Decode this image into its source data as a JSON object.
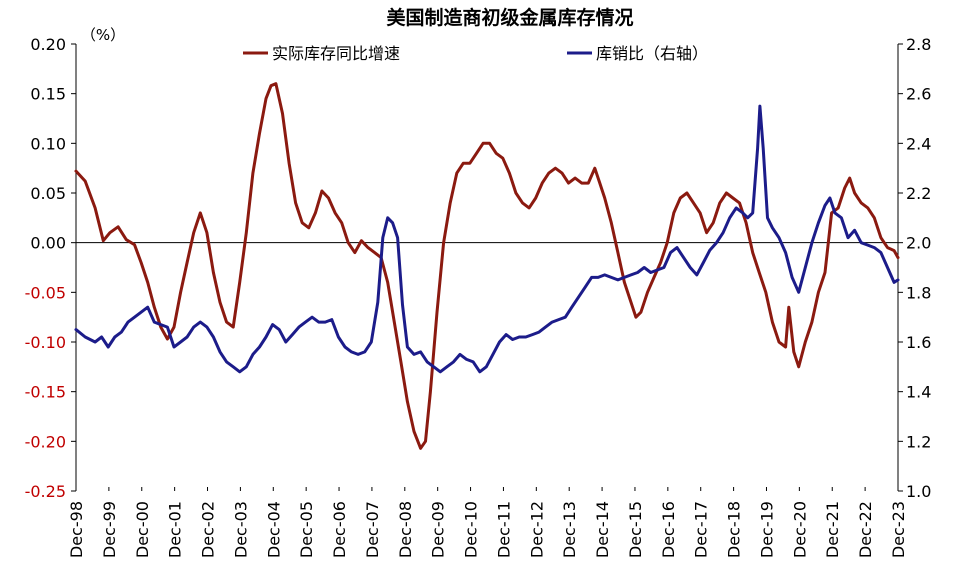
{
  "chart_data": {
    "type": "line",
    "title": "美国制造商初级金属库存情况",
    "unit_label": "（%）",
    "x_tick_labels": [
      "Dec-98",
      "Dec-99",
      "Dec-00",
      "Dec-01",
      "Dec-02",
      "Dec-03",
      "Dec-04",
      "Dec-05",
      "Dec-06",
      "Dec-07",
      "Dec-08",
      "Dec-09",
      "Dec-10",
      "Dec-11",
      "Dec-12",
      "Dec-13",
      "Dec-14",
      "Dec-15",
      "Dec-16",
      "Dec-17",
      "Dec-18",
      "Dec-19",
      "Dec-20",
      "Dec-21",
      "Dec-22",
      "Dec-23"
    ],
    "x_range": [
      1998.92,
      2023.92
    ],
    "y_left": {
      "min": -0.25,
      "max": 0.2,
      "step": 0.05,
      "ticks": [
        "0.20",
        "0.15",
        "0.10",
        "0.05",
        "0.00",
        "-0.05",
        "-0.10",
        "-0.15",
        "-0.20",
        "-0.25"
      ],
      "negative_color": "#c00000"
    },
    "y_right": {
      "min": 1.0,
      "max": 2.8,
      "step": 0.2,
      "ticks": [
        "2.8",
        "2.6",
        "2.4",
        "2.2",
        "2.0",
        "1.8",
        "1.6",
        "1.4",
        "1.2",
        "1.0"
      ]
    },
    "legend_position": "top",
    "series": [
      {
        "name": "实际库存同比增速",
        "axis": "left",
        "color": "#8b1a10",
        "points": [
          [
            1998.92,
            0.072
          ],
          [
            1999.2,
            0.062
          ],
          [
            1999.5,
            0.035
          ],
          [
            1999.75,
            0.002
          ],
          [
            1999.95,
            0.01
          ],
          [
            2000.2,
            0.016
          ],
          [
            2000.45,
            0.003
          ],
          [
            2000.7,
            -0.002
          ],
          [
            2000.9,
            -0.02
          ],
          [
            2001.1,
            -0.04
          ],
          [
            2001.3,
            -0.065
          ],
          [
            2001.5,
            -0.085
          ],
          [
            2001.7,
            -0.097
          ],
          [
            2001.9,
            -0.085
          ],
          [
            2002.1,
            -0.05
          ],
          [
            2002.3,
            -0.02
          ],
          [
            2002.5,
            0.01
          ],
          [
            2002.7,
            0.03
          ],
          [
            2002.9,
            0.01
          ],
          [
            2003.1,
            -0.03
          ],
          [
            2003.3,
            -0.06
          ],
          [
            2003.5,
            -0.08
          ],
          [
            2003.7,
            -0.085
          ],
          [
            2003.9,
            -0.04
          ],
          [
            2004.1,
            0.01
          ],
          [
            2004.3,
            0.07
          ],
          [
            2004.5,
            0.11
          ],
          [
            2004.7,
            0.145
          ],
          [
            2004.85,
            0.158
          ],
          [
            2005.0,
            0.16
          ],
          [
            2005.2,
            0.13
          ],
          [
            2005.4,
            0.08
          ],
          [
            2005.6,
            0.04
          ],
          [
            2005.8,
            0.02
          ],
          [
            2006.0,
            0.015
          ],
          [
            2006.2,
            0.03
          ],
          [
            2006.4,
            0.052
          ],
          [
            2006.6,
            0.045
          ],
          [
            2006.8,
            0.03
          ],
          [
            2007.0,
            0.02
          ],
          [
            2007.2,
            0.0
          ],
          [
            2007.4,
            -0.01
          ],
          [
            2007.6,
            0.002
          ],
          [
            2007.8,
            -0.005
          ],
          [
            2008.0,
            -0.01
          ],
          [
            2008.2,
            -0.015
          ],
          [
            2008.4,
            -0.04
          ],
          [
            2008.6,
            -0.08
          ],
          [
            2008.8,
            -0.12
          ],
          [
            2009.0,
            -0.16
          ],
          [
            2009.2,
            -0.19
          ],
          [
            2009.4,
            -0.207
          ],
          [
            2009.55,
            -0.2
          ],
          [
            2009.7,
            -0.15
          ],
          [
            2009.9,
            -0.07
          ],
          [
            2010.1,
            0.0
          ],
          [
            2010.3,
            0.04
          ],
          [
            2010.5,
            0.07
          ],
          [
            2010.7,
            0.08
          ],
          [
            2010.9,
            0.08
          ],
          [
            2011.1,
            0.09
          ],
          [
            2011.3,
            0.1
          ],
          [
            2011.5,
            0.1
          ],
          [
            2011.7,
            0.09
          ],
          [
            2011.9,
            0.085
          ],
          [
            2012.1,
            0.07
          ],
          [
            2012.3,
            0.05
          ],
          [
            2012.5,
            0.04
          ],
          [
            2012.7,
            0.035
          ],
          [
            2012.9,
            0.045
          ],
          [
            2013.1,
            0.06
          ],
          [
            2013.3,
            0.07
          ],
          [
            2013.5,
            0.075
          ],
          [
            2013.7,
            0.07
          ],
          [
            2013.9,
            0.06
          ],
          [
            2014.1,
            0.065
          ],
          [
            2014.3,
            0.06
          ],
          [
            2014.5,
            0.06
          ],
          [
            2014.7,
            0.075
          ],
          [
            2014.85,
            0.06
          ],
          [
            2015.0,
            0.045
          ],
          [
            2015.2,
            0.02
          ],
          [
            2015.4,
            -0.01
          ],
          [
            2015.6,
            -0.04
          ],
          [
            2015.8,
            -0.06
          ],
          [
            2015.95,
            -0.075
          ],
          [
            2016.1,
            -0.07
          ],
          [
            2016.3,
            -0.05
          ],
          [
            2016.5,
            -0.035
          ],
          [
            2016.7,
            -0.02
          ],
          [
            2016.9,
            0.0
          ],
          [
            2017.1,
            0.03
          ],
          [
            2017.3,
            0.045
          ],
          [
            2017.5,
            0.05
          ],
          [
            2017.7,
            0.04
          ],
          [
            2017.9,
            0.03
          ],
          [
            2018.1,
            0.01
          ],
          [
            2018.3,
            0.02
          ],
          [
            2018.5,
            0.04
          ],
          [
            2018.7,
            0.05
          ],
          [
            2018.9,
            0.045
          ],
          [
            2019.1,
            0.04
          ],
          [
            2019.3,
            0.02
          ],
          [
            2019.5,
            -0.01
          ],
          [
            2019.7,
            -0.03
          ],
          [
            2019.9,
            -0.05
          ],
          [
            2020.1,
            -0.08
          ],
          [
            2020.3,
            -0.1
          ],
          [
            2020.5,
            -0.105
          ],
          [
            2020.6,
            -0.065
          ],
          [
            2020.75,
            -0.11
          ],
          [
            2020.9,
            -0.125
          ],
          [
            2021.1,
            -0.1
          ],
          [
            2021.3,
            -0.08
          ],
          [
            2021.5,
            -0.05
          ],
          [
            2021.7,
            -0.03
          ],
          [
            2021.9,
            0.03
          ],
          [
            2022.1,
            0.035
          ],
          [
            2022.3,
            0.055
          ],
          [
            2022.45,
            0.065
          ],
          [
            2022.6,
            0.05
          ],
          [
            2022.8,
            0.04
          ],
          [
            2023.0,
            0.035
          ],
          [
            2023.2,
            0.025
          ],
          [
            2023.4,
            0.005
          ],
          [
            2023.6,
            -0.005
          ],
          [
            2023.8,
            -0.008
          ],
          [
            2023.92,
            -0.015
          ]
        ]
      },
      {
        "name": "库销比（右轴）",
        "axis": "right",
        "color": "#1c1c8a",
        "points": [
          [
            1998.92,
            1.65
          ],
          [
            1999.2,
            1.62
          ],
          [
            1999.5,
            1.6
          ],
          [
            1999.7,
            1.62
          ],
          [
            1999.9,
            1.58
          ],
          [
            2000.1,
            1.62
          ],
          [
            2000.3,
            1.64
          ],
          [
            2000.5,
            1.68
          ],
          [
            2000.7,
            1.7
          ],
          [
            2000.9,
            1.72
          ],
          [
            2001.1,
            1.74
          ],
          [
            2001.3,
            1.68
          ],
          [
            2001.5,
            1.67
          ],
          [
            2001.7,
            1.66
          ],
          [
            2001.9,
            1.58
          ],
          [
            2002.1,
            1.6
          ],
          [
            2002.3,
            1.62
          ],
          [
            2002.5,
            1.66
          ],
          [
            2002.7,
            1.68
          ],
          [
            2002.9,
            1.66
          ],
          [
            2003.1,
            1.62
          ],
          [
            2003.3,
            1.56
          ],
          [
            2003.5,
            1.52
          ],
          [
            2003.7,
            1.5
          ],
          [
            2003.9,
            1.48
          ],
          [
            2004.1,
            1.5
          ],
          [
            2004.3,
            1.55
          ],
          [
            2004.5,
            1.58
          ],
          [
            2004.7,
            1.62
          ],
          [
            2004.9,
            1.67
          ],
          [
            2005.1,
            1.65
          ],
          [
            2005.3,
            1.6
          ],
          [
            2005.5,
            1.63
          ],
          [
            2005.7,
            1.66
          ],
          [
            2005.9,
            1.68
          ],
          [
            2006.1,
            1.7
          ],
          [
            2006.3,
            1.68
          ],
          [
            2006.5,
            1.68
          ],
          [
            2006.7,
            1.69
          ],
          [
            2006.9,
            1.62
          ],
          [
            2007.1,
            1.58
          ],
          [
            2007.3,
            1.56
          ],
          [
            2007.5,
            1.55
          ],
          [
            2007.7,
            1.56
          ],
          [
            2007.9,
            1.6
          ],
          [
            2008.1,
            1.76
          ],
          [
            2008.25,
            2.02
          ],
          [
            2008.4,
            2.1
          ],
          [
            2008.55,
            2.08
          ],
          [
            2008.7,
            2.02
          ],
          [
            2008.85,
            1.75
          ],
          [
            2009.0,
            1.58
          ],
          [
            2009.2,
            1.55
          ],
          [
            2009.4,
            1.56
          ],
          [
            2009.6,
            1.52
          ],
          [
            2009.8,
            1.5
          ],
          [
            2010.0,
            1.48
          ],
          [
            2010.2,
            1.5
          ],
          [
            2010.4,
            1.52
          ],
          [
            2010.6,
            1.55
          ],
          [
            2010.8,
            1.53
          ],
          [
            2011.0,
            1.52
          ],
          [
            2011.2,
            1.48
          ],
          [
            2011.4,
            1.5
          ],
          [
            2011.6,
            1.55
          ],
          [
            2011.8,
            1.6
          ],
          [
            2012.0,
            1.63
          ],
          [
            2012.2,
            1.61
          ],
          [
            2012.4,
            1.62
          ],
          [
            2012.6,
            1.62
          ],
          [
            2012.8,
            1.63
          ],
          [
            2013.0,
            1.64
          ],
          [
            2013.2,
            1.66
          ],
          [
            2013.4,
            1.68
          ],
          [
            2013.6,
            1.69
          ],
          [
            2013.8,
            1.7
          ],
          [
            2014.0,
            1.74
          ],
          [
            2014.2,
            1.78
          ],
          [
            2014.4,
            1.82
          ],
          [
            2014.6,
            1.86
          ],
          [
            2014.8,
            1.86
          ],
          [
            2015.0,
            1.87
          ],
          [
            2015.2,
            1.86
          ],
          [
            2015.4,
            1.85
          ],
          [
            2015.6,
            1.86
          ],
          [
            2015.8,
            1.87
          ],
          [
            2016.0,
            1.88
          ],
          [
            2016.2,
            1.9
          ],
          [
            2016.4,
            1.88
          ],
          [
            2016.6,
            1.89
          ],
          [
            2016.8,
            1.9
          ],
          [
            2017.0,
            1.96
          ],
          [
            2017.2,
            1.98
          ],
          [
            2017.4,
            1.94
          ],
          [
            2017.6,
            1.9
          ],
          [
            2017.8,
            1.87
          ],
          [
            2018.0,
            1.92
          ],
          [
            2018.2,
            1.97
          ],
          [
            2018.4,
            2.0
          ],
          [
            2018.6,
            2.04
          ],
          [
            2018.8,
            2.1
          ],
          [
            2019.0,
            2.14
          ],
          [
            2019.2,
            2.12
          ],
          [
            2019.35,
            2.1
          ],
          [
            2019.5,
            2.12
          ],
          [
            2019.65,
            2.38
          ],
          [
            2019.72,
            2.55
          ],
          [
            2019.82,
            2.38
          ],
          [
            2019.95,
            2.1
          ],
          [
            2020.1,
            2.06
          ],
          [
            2020.3,
            2.02
          ],
          [
            2020.5,
            1.96
          ],
          [
            2020.7,
            1.86
          ],
          [
            2020.9,
            1.8
          ],
          [
            2021.1,
            1.9
          ],
          [
            2021.3,
            2.0
          ],
          [
            2021.5,
            2.08
          ],
          [
            2021.7,
            2.15
          ],
          [
            2021.85,
            2.18
          ],
          [
            2022.0,
            2.12
          ],
          [
            2022.2,
            2.1
          ],
          [
            2022.4,
            2.02
          ],
          [
            2022.6,
            2.05
          ],
          [
            2022.8,
            2.0
          ],
          [
            2023.0,
            1.99
          ],
          [
            2023.2,
            1.98
          ],
          [
            2023.4,
            1.96
          ],
          [
            2023.6,
            1.9
          ],
          [
            2023.8,
            1.84
          ],
          [
            2023.92,
            1.85
          ]
        ]
      }
    ]
  }
}
